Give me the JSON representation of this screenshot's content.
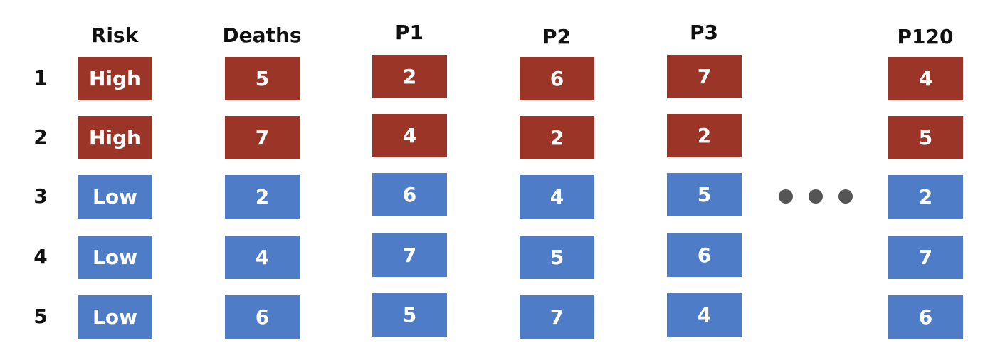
{
  "colors": {
    "high": "#9B3527",
    "low": "#4E7CC6",
    "dots": "#555555"
  },
  "columns": [
    {
      "header": "Risk",
      "cells": [
        {
          "text": "High",
          "level": "high"
        },
        {
          "text": "High",
          "level": "high"
        },
        {
          "text": "Low",
          "level": "low"
        },
        {
          "text": "Low",
          "level": "low"
        },
        {
          "text": "Low",
          "level": "low"
        }
      ]
    },
    {
      "header": "Deaths",
      "cells": [
        {
          "text": "5",
          "level": "high"
        },
        {
          "text": "7",
          "level": "high"
        },
        {
          "text": "2",
          "level": "low"
        },
        {
          "text": "4",
          "level": "low"
        },
        {
          "text": "6",
          "level": "low"
        }
      ]
    },
    {
      "header": "P1",
      "cells": [
        {
          "text": "2",
          "level": "high"
        },
        {
          "text": "4",
          "level": "high"
        },
        {
          "text": "6",
          "level": "low"
        },
        {
          "text": "7",
          "level": "low"
        },
        {
          "text": "5",
          "level": "low"
        }
      ]
    },
    {
      "header": "P2",
      "cells": [
        {
          "text": "6",
          "level": "high"
        },
        {
          "text": "2",
          "level": "high"
        },
        {
          "text": "4",
          "level": "low"
        },
        {
          "text": "5",
          "level": "low"
        },
        {
          "text": "7",
          "level": "low"
        }
      ]
    },
    {
      "header": "P3",
      "cells": [
        {
          "text": "7",
          "level": "high"
        },
        {
          "text": "2",
          "level": "high"
        },
        {
          "text": "5",
          "level": "low"
        },
        {
          "text": "6",
          "level": "low"
        },
        {
          "text": "4",
          "level": "low"
        }
      ]
    },
    {
      "header": "P120",
      "cells": [
        {
          "text": "4",
          "level": "high"
        },
        {
          "text": "5",
          "level": "high"
        },
        {
          "text": "2",
          "level": "low"
        },
        {
          "text": "7",
          "level": "low"
        },
        {
          "text": "6",
          "level": "low"
        }
      ]
    }
  ],
  "rows": [
    "1",
    "2",
    "3",
    "4",
    "5"
  ],
  "ellipsis": {
    "icon": "ellipsis-dots-icon",
    "count": 3
  }
}
